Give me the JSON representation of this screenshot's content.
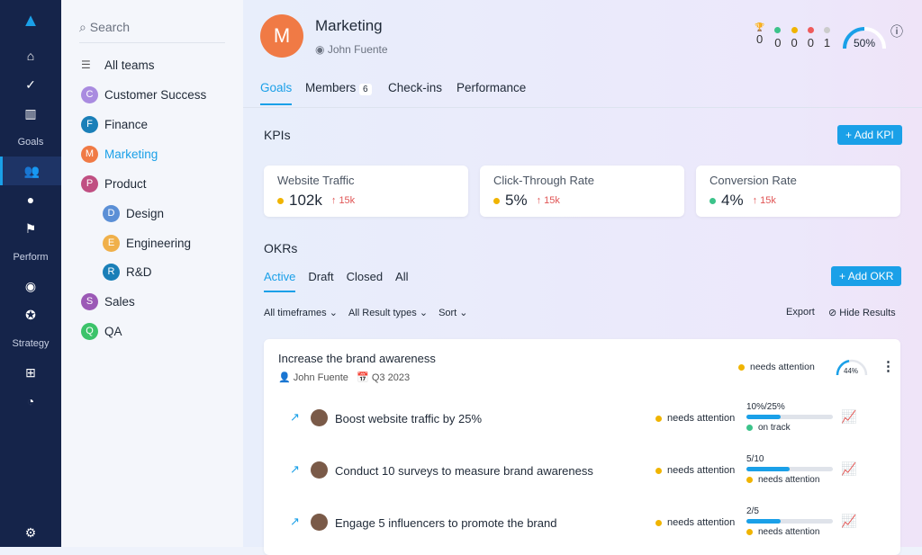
{
  "nav": {
    "labels": [
      "Goals",
      "Perform",
      "Strategy"
    ]
  },
  "teams": {
    "search_placeholder": "Search",
    "all": "All teams",
    "items": [
      {
        "initial": "C",
        "name": "Customer Success",
        "color": "#a98be0"
      },
      {
        "initial": "F",
        "name": "Finance",
        "color": "#1a7fb8"
      },
      {
        "initial": "M",
        "name": "Marketing",
        "color": "#f07a45",
        "active": true
      },
      {
        "initial": "P",
        "name": "Product",
        "color": "#c04f82"
      },
      {
        "initial": "D",
        "name": "Design",
        "color": "#5b8fd6"
      },
      {
        "initial": "E",
        "name": "Engineering",
        "color": "#f0b04a"
      },
      {
        "initial": "R",
        "name": "R&D",
        "color": "#1a7fb8"
      },
      {
        "initial": "S",
        "name": "Sales",
        "color": "#9b59b6"
      },
      {
        "initial": "Q",
        "name": "QA",
        "color": "#3cc36a"
      }
    ]
  },
  "header": {
    "initial": "M",
    "title": "Marketing",
    "owner": "John Fuente",
    "counts": [
      "0",
      "0",
      "0",
      "0",
      "1"
    ],
    "progress": 50,
    "progress_label": "50%"
  },
  "tabs": [
    {
      "label": "Goals"
    },
    {
      "label": "Members",
      "badge": "6"
    },
    {
      "label": "Check-ins"
    },
    {
      "label": "Performance"
    }
  ],
  "kpis": {
    "title": "KPIs",
    "add": "Add KPI",
    "items": [
      {
        "name": "Website Traffic",
        "value": "102k",
        "delta": "15k",
        "dot": "#f0b400"
      },
      {
        "name": "Click-Through Rate",
        "value": "5%",
        "delta": "15k",
        "dot": "#f0b400"
      },
      {
        "name": "Conversion Rate",
        "value": "4%",
        "delta": "15k",
        "dot": "#3cc38a"
      }
    ]
  },
  "okrs": {
    "title": "OKRs",
    "add": "Add OKR",
    "tabs": [
      "Active",
      "Draft",
      "Closed",
      "All"
    ],
    "filters": [
      "All timeframes",
      "All Result types",
      "Sort"
    ],
    "export": "Export",
    "hide": "Hide Results",
    "objective": {
      "title": "Increase the brand awareness",
      "owner": "John Fuente",
      "period": "Q3 2023",
      "status": "needs attention",
      "progress": 44,
      "progress_label": "44%"
    },
    "results": [
      {
        "title": "Boost website traffic by 25%",
        "status": "needs attention",
        "value": "10%/25%",
        "progress": 40,
        "sub": "on track",
        "sub_color": "#3cc38a"
      },
      {
        "title": "Conduct 10 surveys to measure brand awareness",
        "status": "needs attention",
        "value": "5/10",
        "progress": 50,
        "sub": "needs attention",
        "sub_color": "#f0b400"
      },
      {
        "title": "Engage 5 influencers to promote the brand",
        "status": "needs attention",
        "value": "2/5",
        "progress": 40,
        "sub": "needs attention",
        "sub_color": "#f0b400"
      }
    ]
  }
}
